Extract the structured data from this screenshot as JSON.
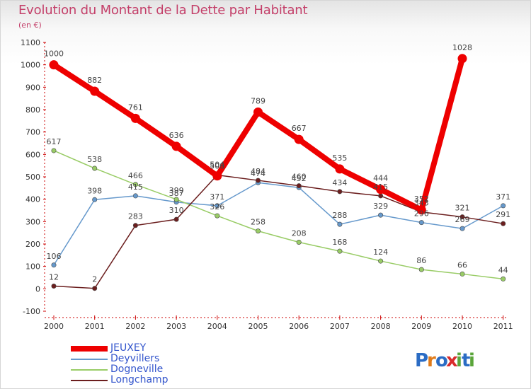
{
  "chart_data": {
    "type": "line",
    "title": "Evolution du Montant de la Dette par Habitant",
    "subtitle": "(en €)",
    "categories": [
      "2000",
      "2001",
      "2002",
      "2003",
      "2004",
      "2005",
      "2006",
      "2007",
      "2008",
      "2009",
      "2010",
      "2011"
    ],
    "ylim": [
      -100,
      1100
    ],
    "yticks": [
      -100,
      0,
      100,
      200,
      300,
      400,
      500,
      600,
      700,
      800,
      900,
      1000,
      1100
    ],
    "grid": false,
    "legend_position": "bottom-left",
    "series": [
      {
        "name": "JEUXEY",
        "color": "#ee0000",
        "values": [
          1000,
          882,
          761,
          636,
          504,
          789,
          667,
          535,
          444,
          352,
          1028,
          null
        ]
      },
      {
        "name": "Deyvillers",
        "color": "#6699cc",
        "values": [
          106,
          398,
          415,
          387,
          371,
          474,
          452,
          288,
          329,
          296,
          269,
          371
        ]
      },
      {
        "name": "Dogneville",
        "color": "#99cc66",
        "values": [
          617,
          538,
          466,
          399,
          326,
          258,
          208,
          168,
          124,
          86,
          66,
          44
        ]
      },
      {
        "name": "Longchamp",
        "color": "#6b1e1e",
        "values": [
          12,
          2,
          283,
          310,
          508,
          484,
          460,
          434,
          415,
          343,
          321,
          291
        ]
      }
    ]
  },
  "logo": {
    "text": "Proxiti",
    "letters": [
      "P",
      "r",
      "o",
      "x",
      "i",
      "t",
      "i"
    ]
  }
}
